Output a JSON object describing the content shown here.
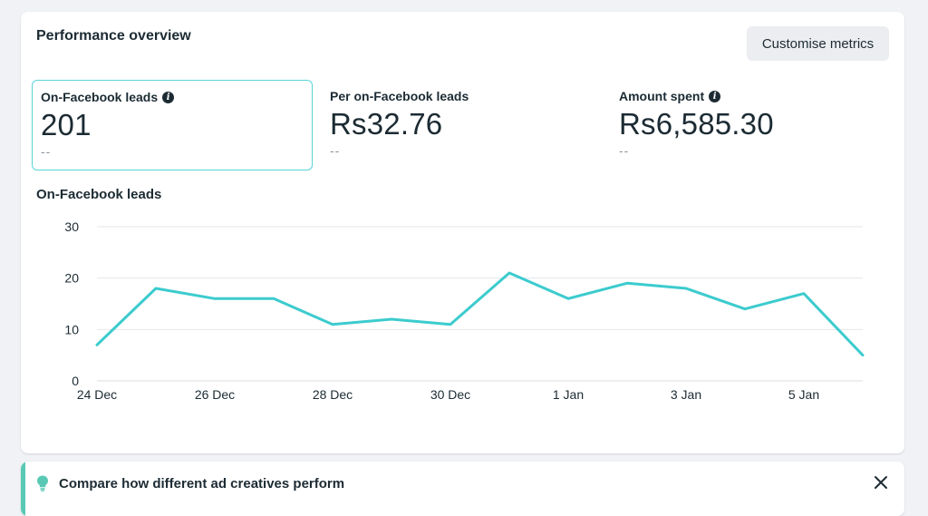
{
  "card": {
    "title": "Performance overview",
    "customise_label": "Customise metrics"
  },
  "metrics": [
    {
      "label": "On-Facebook leads",
      "value": "201",
      "sub": "--",
      "info": true,
      "selected": true
    },
    {
      "label": "Per on-Facebook leads",
      "value": "Rs32.76",
      "sub": "--",
      "info": false,
      "selected": false
    },
    {
      "label": "Amount spent",
      "value": "Rs6,585.30",
      "sub": "--",
      "info": true,
      "selected": false
    }
  ],
  "chart_data": {
    "type": "line",
    "title": "On-Facebook leads",
    "x": [
      "24 Dec",
      "25 Dec",
      "26 Dec",
      "27 Dec",
      "28 Dec",
      "29 Dec",
      "30 Dec",
      "31 Dec",
      "1 Jan",
      "2 Jan",
      "3 Jan",
      "4 Jan",
      "5 Jan",
      "6 Jan"
    ],
    "tick_labels": [
      "24 Dec",
      "26 Dec",
      "28 Dec",
      "30 Dec",
      "1 Jan",
      "3 Jan",
      "5 Jan"
    ],
    "series": [
      {
        "values": [
          7,
          18,
          16,
          16,
          11,
          12,
          11,
          21,
          16,
          19,
          18,
          14,
          17,
          5
        ]
      }
    ],
    "yticks": [
      0,
      10,
      20,
      30
    ],
    "ylim": [
      0,
      30
    ],
    "grid": true,
    "color": "#3ccbce"
  },
  "banner": {
    "text": "Compare how different ad creatives perform",
    "accent": "#59c9b5"
  },
  "icons": {
    "info": "info-icon",
    "bulb": "lightbulb-icon",
    "close": "close-icon"
  }
}
